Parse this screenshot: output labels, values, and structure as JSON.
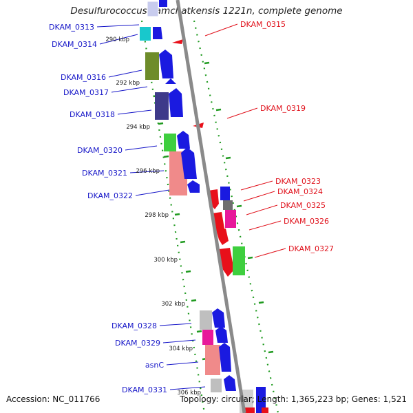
{
  "title": "Desulfurococcus kamchatkensis 1221n, complete genome",
  "footer": {
    "accession": "Accession: NC_011766",
    "summary": "Topology: circular; Length: 1,365,223 bp; Genes: 1,521"
  },
  "colors": {
    "forward_label": "#1515c8",
    "reverse_label": "#e0101a",
    "backbone": "#8a8a8a",
    "dot_ring": "#1f9a1f"
  },
  "kbp_ticks": [
    "290 kbp",
    "292 kbp",
    "294 kbp",
    "296 kbp",
    "298 kbp",
    "300 kbp",
    "302 kbp",
    "304 kbp",
    "306 kbp"
  ],
  "forward_genes": [
    "DKAM_0313",
    "DKAM_0314",
    "DKAM_0316",
    "DKAM_0317",
    "DKAM_0318",
    "DKAM_0320",
    "DKAM_0321",
    "DKAM_0322",
    "DKAM_0328",
    "DKAM_0329",
    "asnC",
    "DKAM_0331"
  ],
  "reverse_genes": [
    "DKAM_0315",
    "DKAM_0319",
    "DKAM_0323",
    "DKAM_0324",
    "DKAM_0325",
    "DKAM_0326",
    "DKAM_0327"
  ]
}
